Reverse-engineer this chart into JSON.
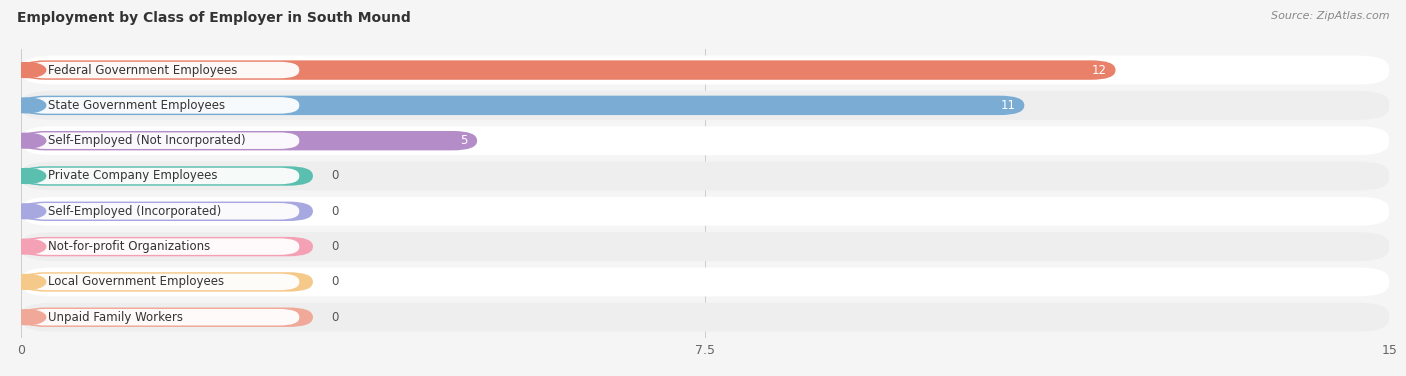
{
  "title": "Employment by Class of Employer in South Mound",
  "source": "Source: ZipAtlas.com",
  "categories": [
    "Federal Government Employees",
    "State Government Employees",
    "Self-Employed (Not Incorporated)",
    "Private Company Employees",
    "Self-Employed (Incorporated)",
    "Not-for-profit Organizations",
    "Local Government Employees",
    "Unpaid Family Workers"
  ],
  "values": [
    12,
    11,
    5,
    0,
    0,
    0,
    0,
    0
  ],
  "bar_colors": [
    "#E8806A",
    "#7BADD4",
    "#B48DC8",
    "#5BBFB0",
    "#A8A8E0",
    "#F4A0B5",
    "#F5C98A",
    "#F0A898"
  ],
  "xlim": [
    0,
    15
  ],
  "xticks": [
    0,
    7.5,
    15
  ],
  "background_color": "#f5f5f5",
  "row_colors": [
    "#ffffff",
    "#eeeeee"
  ],
  "title_fontsize": 10,
  "source_fontsize": 8,
  "label_fontsize": 8.5,
  "value_fontsize": 8.5,
  "min_bar_width": 3.2
}
